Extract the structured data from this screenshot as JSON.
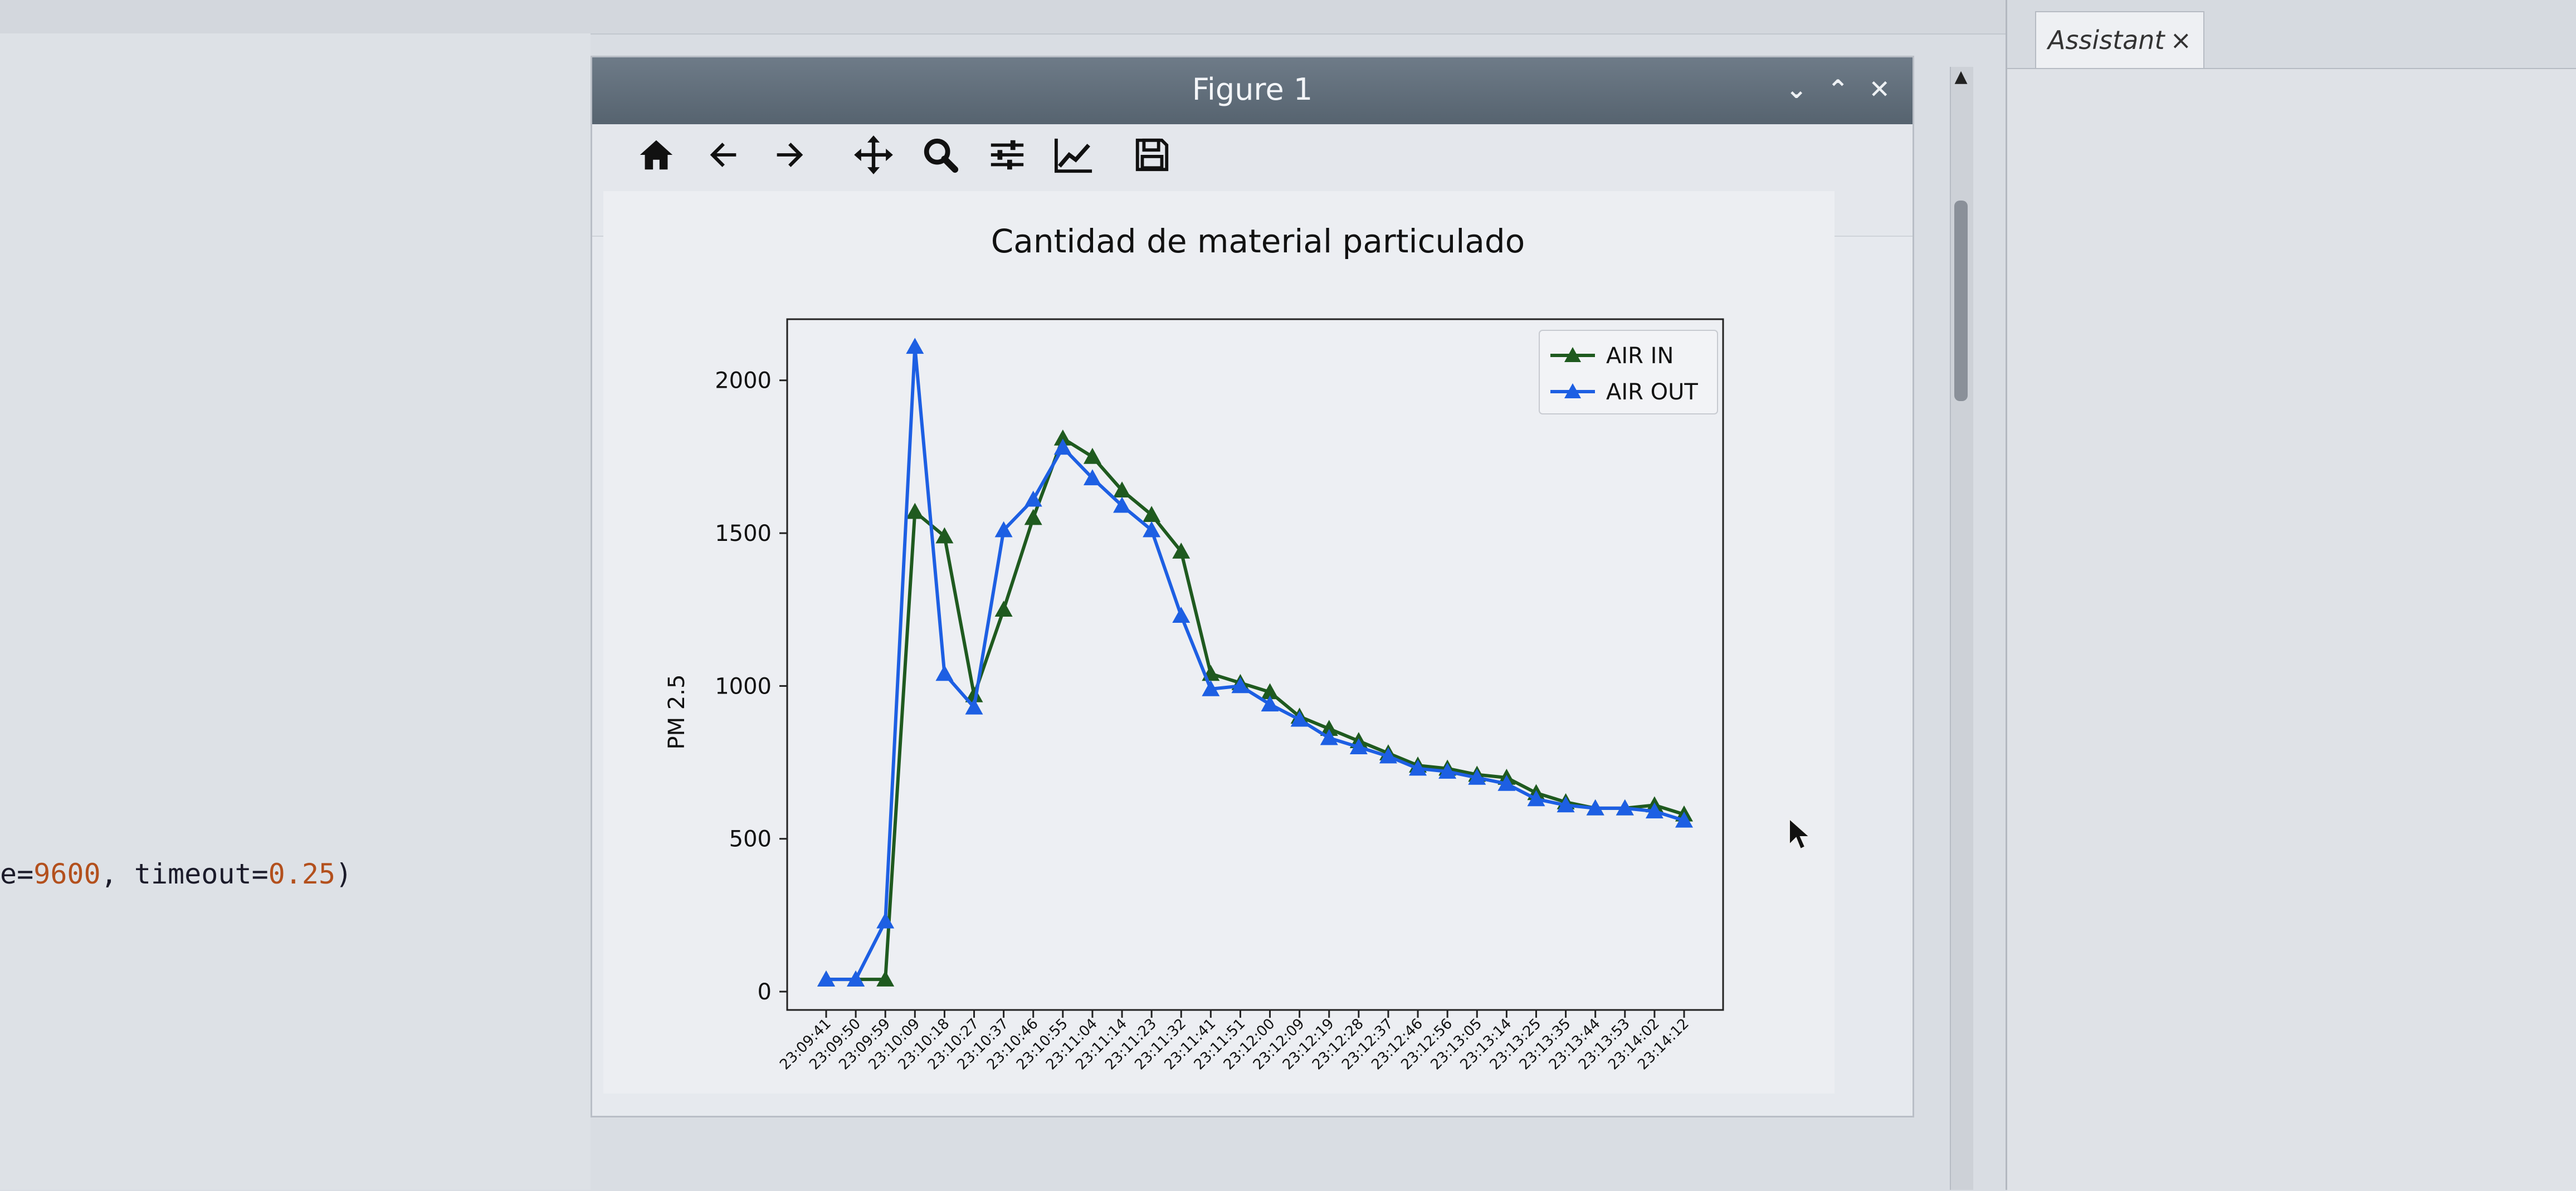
{
  "editor": {
    "code_pre": "e=",
    "code_num1": "9600",
    "code_mid": ", timeout=",
    "code_num2": "0.25",
    "code_post": ")"
  },
  "figure_window": {
    "title": "Figure 1",
    "controls": [
      "⌄",
      "⌃",
      "✕"
    ],
    "toolbar_icons": [
      "home-icon",
      "back-icon",
      "forward-icon",
      "pan-icon",
      "zoom-icon",
      "configure-subplots-icon",
      "edit-axis-icon",
      "save-icon"
    ]
  },
  "assistant": {
    "tab_label": "Assistant",
    "close_glyph": "×"
  },
  "chart_data": {
    "type": "line",
    "title": "Cantidad de material particulado",
    "xlabel": "",
    "ylabel": "PM 2.5",
    "ylim": [
      -60,
      2200
    ],
    "yticks": [
      0,
      500,
      1000,
      1500,
      2000
    ],
    "grid": false,
    "legend_position": "top-right",
    "categories": [
      "23:09:41",
      "23:09:50",
      "23:09:59",
      "23:10:09",
      "23:10:18",
      "23:10:27",
      "23:10:37",
      "23:10:46",
      "23:10:55",
      "23:11:04",
      "23:11:14",
      "23:11:23",
      "23:11:32",
      "23:11:41",
      "23:11:51",
      "23:12:00",
      "23:12:09",
      "23:12:19",
      "23:12:28",
      "23:12:37",
      "23:12:46",
      "23:12:56",
      "23:13:05",
      "23:13:14",
      "23:13:25",
      "23:13:35",
      "23:13:44",
      "23:13:53",
      "23:14:02",
      "23:14:12"
    ],
    "series": [
      {
        "name": "AIR IN",
        "color": "#1f5a1f",
        "marker": "triangle",
        "values": [
          40,
          40,
          40,
          1570,
          1490,
          970,
          1250,
          1550,
          1810,
          1750,
          1640,
          1560,
          1440,
          1040,
          1010,
          980,
          900,
          860,
          820,
          780,
          740,
          730,
          710,
          700,
          650,
          620,
          600,
          600,
          610,
          580
        ]
      },
      {
        "name": "AIR OUT",
        "color": "#1d5fe3",
        "marker": "triangle",
        "values": [
          40,
          40,
          230,
          2110,
          1040,
          930,
          1510,
          1610,
          1780,
          1680,
          1590,
          1510,
          1230,
          990,
          1000,
          940,
          890,
          830,
          800,
          770,
          730,
          720,
          700,
          680,
          630,
          610,
          600,
          600,
          590,
          560
        ]
      }
    ]
  }
}
